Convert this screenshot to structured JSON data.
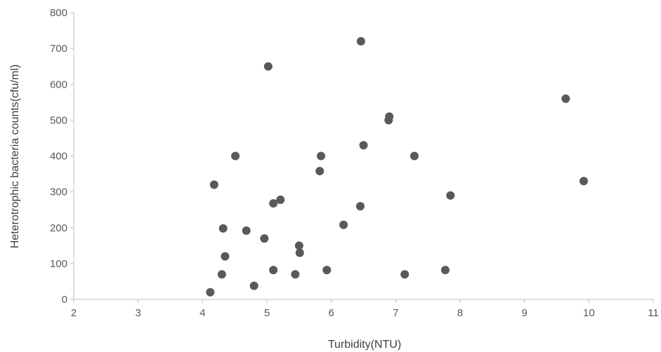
{
  "chart_data": {
    "type": "scatter",
    "title": "",
    "xlabel": "Turbidity(NTU)",
    "ylabel": "Heterotrophic bacteria counts(cfu/ml)",
    "xlim": [
      2,
      11
    ],
    "ylim": [
      0,
      800
    ],
    "x_ticks": [
      2,
      3,
      4,
      5,
      6,
      7,
      8,
      9,
      10,
      11
    ],
    "y_ticks": [
      0,
      100,
      200,
      300,
      400,
      500,
      600,
      700,
      800
    ],
    "grid": false,
    "legend": "none",
    "marker_color": "#595959",
    "series": [
      {
        "points": [
          {
            "x": 4.12,
            "y": 20
          },
          {
            "x": 4.18,
            "y": 320
          },
          {
            "x": 4.3,
            "y": 70
          },
          {
            "x": 4.32,
            "y": 198
          },
          {
            "x": 4.35,
            "y": 120
          },
          {
            "x": 4.51,
            "y": 400
          },
          {
            "x": 4.68,
            "y": 192
          },
          {
            "x": 4.8,
            "y": 38
          },
          {
            "x": 4.96,
            "y": 170
          },
          {
            "x": 5.02,
            "y": 650
          },
          {
            "x": 5.1,
            "y": 82
          },
          {
            "x": 5.1,
            "y": 268
          },
          {
            "x": 5.21,
            "y": 278
          },
          {
            "x": 5.44,
            "y": 70
          },
          {
            "x": 5.5,
            "y": 150
          },
          {
            "x": 5.51,
            "y": 130
          },
          {
            "x": 5.82,
            "y": 358
          },
          {
            "x": 5.84,
            "y": 400
          },
          {
            "x": 5.93,
            "y": 82
          },
          {
            "x": 6.19,
            "y": 208
          },
          {
            "x": 6.45,
            "y": 260
          },
          {
            "x": 6.46,
            "y": 720
          },
          {
            "x": 6.5,
            "y": 430
          },
          {
            "x": 6.89,
            "y": 500
          },
          {
            "x": 6.9,
            "y": 510
          },
          {
            "x": 7.14,
            "y": 70
          },
          {
            "x": 7.29,
            "y": 400
          },
          {
            "x": 7.77,
            "y": 82
          },
          {
            "x": 7.85,
            "y": 290
          },
          {
            "x": 9.64,
            "y": 560
          },
          {
            "x": 9.92,
            "y": 330
          }
        ]
      }
    ]
  }
}
